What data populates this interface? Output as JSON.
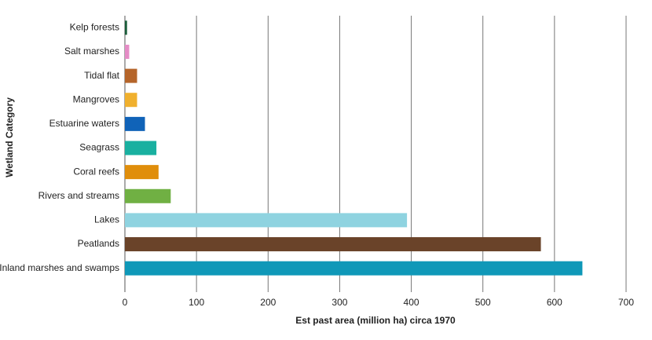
{
  "chart_data": {
    "type": "hbar",
    "x_label": "Est past area (million ha) circa 1970",
    "y_label": "Wetland Category",
    "categories": [
      "Kelp forests",
      "Salt marshes",
      "Tidal flat",
      "Mangroves",
      "Estuarine waters",
      "Seagrass",
      "Coral reefs",
      "Rivers and streams",
      "Lakes",
      "Peatlands",
      "Inland marshes and swamps"
    ],
    "values": [
      3,
      6,
      17,
      17,
      28,
      44,
      47,
      64,
      394,
      581,
      639
    ],
    "colors": [
      "#1b5e3b",
      "#e58cc6",
      "#b5652a",
      "#f0b02e",
      "#1063b8",
      "#19b0a0",
      "#e08e0b",
      "#70b043",
      "#8fd3e0",
      "#6a4329",
      "#0f98b8"
    ],
    "xlim": [
      0,
      700
    ],
    "xticks": [
      0,
      100,
      200,
      300,
      400,
      500,
      600,
      700
    ],
    "grid": true
  }
}
